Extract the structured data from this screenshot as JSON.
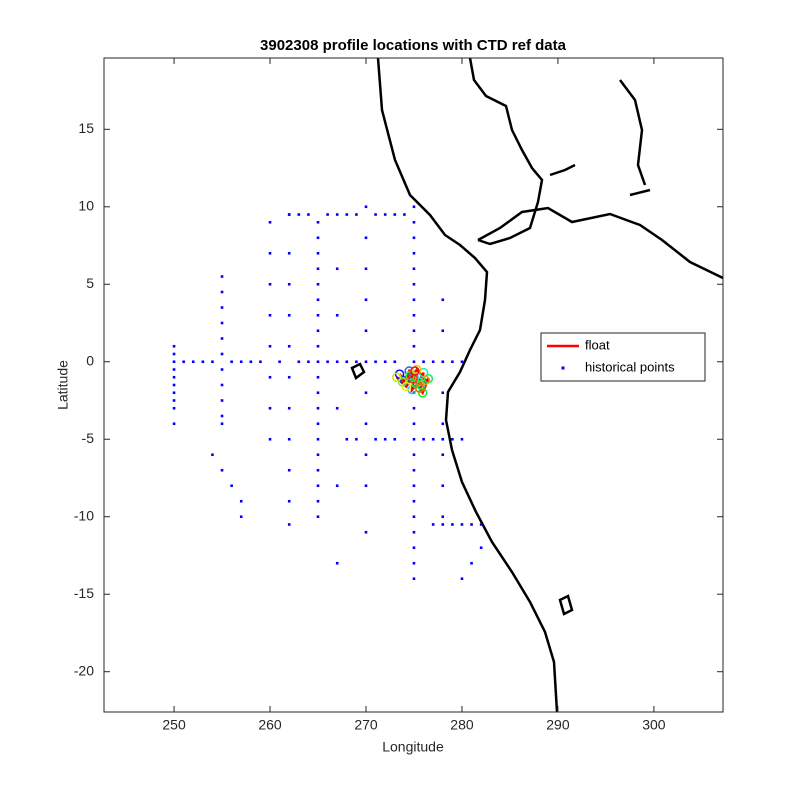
{
  "chart_data": {
    "type": "scatter",
    "title": "3902308 profile locations with CTD ref data",
    "x_label": "Longitude",
    "y_label": "Latitude",
    "xlim": [
      242.7,
      307.2
    ],
    "ylim": [
      -22.6,
      19.6
    ],
    "xticks": [
      250,
      260,
      270,
      280,
      290,
      300
    ],
    "yticks": [
      -20,
      -15,
      -10,
      -5,
      0,
      5,
      10,
      15
    ],
    "legend": "east",
    "series": [
      {
        "name": "float",
        "color": "#ff0000",
        "mode": "line",
        "x": [
          273.5,
          274,
          274.5,
          275,
          274.8,
          275.5,
          276,
          275.7,
          276.5,
          275.9,
          275.2,
          274.6,
          273.8,
          273.2,
          274.2,
          275.3,
          276.2,
          275.6,
          274.9,
          275.1
        ],
        "y": [
          -0.8,
          -1.2,
          -0.6,
          -1.0,
          -1.8,
          -1.3,
          -0.7,
          -1.5,
          -1.1,
          -2.0,
          -1.4,
          -0.9,
          -1.3,
          -1.0,
          -1.6,
          -0.5,
          -1.2,
          -1.7,
          -1.1,
          -0.6
        ]
      },
      {
        "name": "historical points",
        "color": "#0000ff",
        "mode": "points",
        "x": [
          250,
          250,
          250,
          250,
          250,
          250,
          250,
          250,
          250,
          250,
          255,
          255,
          255,
          255,
          255,
          255,
          255,
          255,
          255,
          255,
          255,
          260,
          260,
          260,
          260,
          260,
          260,
          260,
          260,
          262,
          262,
          262,
          262,
          262,
          262,
          262,
          262,
          262,
          262,
          262,
          265,
          265,
          265,
          265,
          265,
          265,
          265,
          265,
          265,
          265,
          265,
          265,
          265,
          265,
          265,
          265,
          265,
          265,
          265,
          265,
          270,
          270,
          270,
          270,
          270,
          270,
          270,
          270,
          270,
          270,
          270,
          275,
          275,
          275,
          275,
          275,
          275,
          275,
          275,
          275,
          275,
          275,
          275,
          275,
          275,
          275,
          275,
          275,
          275,
          275,
          275,
          275,
          275,
          275,
          275,
          275,
          251,
          252,
          253,
          254,
          256,
          257,
          258,
          259,
          261,
          263,
          264,
          266,
          267,
          268,
          269,
          271,
          272,
          273,
          276,
          277,
          278,
          279,
          280,
          262,
          263,
          264,
          266,
          267,
          268,
          269,
          271,
          272,
          273,
          274,
          268,
          269,
          271,
          272,
          273,
          276,
          277,
          278,
          279,
          280,
          277,
          278,
          279,
          280,
          281,
          282,
          254,
          255,
          256,
          257,
          257,
          282,
          281,
          280,
          278,
          278,
          278,
          278,
          278,
          278,
          278,
          267,
          267,
          267,
          267,
          267
        ],
        "y": [
          1,
          0.5,
          0,
          -0.5,
          -1,
          -1.5,
          -2,
          -2.5,
          -3,
          -4,
          5.5,
          4.5,
          3.5,
          2.5,
          1.5,
          0.5,
          -0.5,
          -1.5,
          -2.5,
          -3.5,
          -4,
          9,
          7,
          5,
          3,
          1,
          -1,
          -3,
          -5,
          9.5,
          7,
          5,
          3,
          1,
          -1,
          -3,
          -5,
          -7,
          -9,
          -10.5,
          9,
          8,
          7,
          6,
          5,
          4,
          3,
          2,
          1,
          0,
          -1,
          -2,
          -3,
          -4,
          -5,
          -6,
          -7,
          -8,
          -9,
          -10,
          10,
          8,
          6,
          4,
          2,
          0,
          -2,
          -4,
          -6,
          -8,
          -11,
          10,
          9,
          8,
          7,
          6,
          5,
          4,
          3,
          2,
          1,
          0,
          -1,
          -2,
          -3,
          -4,
          -5,
          -6,
          -7,
          -8,
          -9,
          -10,
          -11,
          -12,
          -13,
          -14,
          0,
          0,
          0,
          0,
          0,
          0,
          0,
          0,
          0,
          0,
          0,
          0,
          0,
          0,
          0,
          0,
          0,
          0,
          0,
          0,
          0,
          0,
          0,
          9.5,
          9.5,
          9.5,
          9.5,
          9.5,
          9.5,
          9.5,
          9.5,
          9.5,
          9.5,
          9.5,
          -5,
          -5,
          -5,
          -5,
          -5,
          -5,
          -5,
          -5,
          -5,
          -5,
          -10.5,
          -10.5,
          -10.5,
          -10.5,
          -10.5,
          -10.5,
          -6,
          -7,
          -8,
          -9,
          -10,
          -12,
          -13,
          -14,
          4,
          2,
          -2,
          -4,
          -6,
          -8,
          -10,
          6,
          3,
          -3,
          -8,
          -13
        ]
      }
    ]
  }
}
